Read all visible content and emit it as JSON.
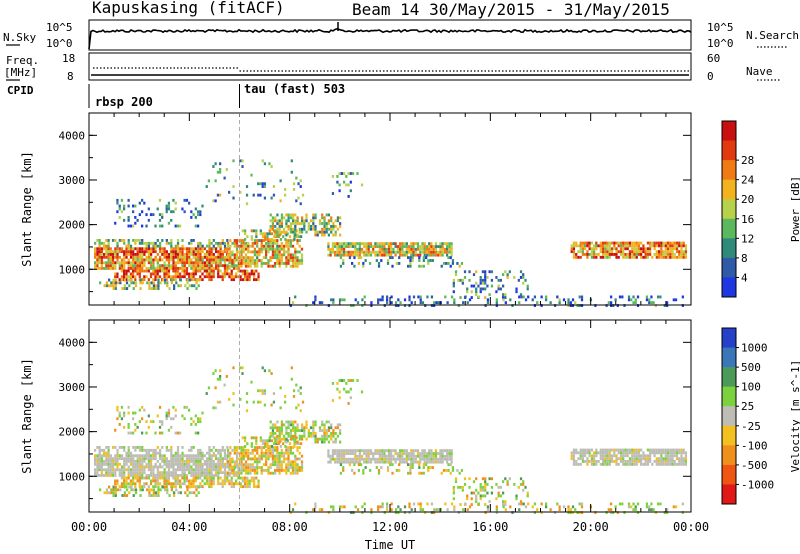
{
  "header": {
    "station": "Kapuskasing (fitACF)",
    "beam_info": "Beam 14 30/May/2015 - 31/May/2015"
  },
  "noise_panel": {
    "left_label": "N.Sky",
    "right_label": "N.Search",
    "left_ticks": [
      "10^5",
      "10^0"
    ],
    "right_ticks": [
      "10^5",
      "10^0"
    ]
  },
  "freq_panel": {
    "left_label_line1": "Freq.",
    "left_label_line2": "[MHz]",
    "right_label": "Nave",
    "left_ticks": [
      "18",
      "8"
    ],
    "right_ticks": [
      "60",
      "0"
    ]
  },
  "cpid_panel": {
    "label": "CPID",
    "modes": [
      {
        "name": "rbsp 200",
        "start_hour": 0
      },
      {
        "name": "tau (fast) 503",
        "start_hour": 6
      }
    ]
  },
  "chart_data": [
    {
      "type": "heatmap",
      "name": "power",
      "ylabel": "Slant Range [km]",
      "yticks": [
        "1000",
        "2000",
        "3000",
        "4000"
      ],
      "ylim": [
        200,
        4500
      ],
      "colorbar_label": "Power [dB]",
      "colorbar_ticks": [
        "4",
        "8",
        "12",
        "16",
        "20",
        "24",
        "28"
      ],
      "colorbar_range": [
        0,
        32
      ],
      "colors": [
        "#1f37e0",
        "#2e5aa8",
        "#2f8a7a",
        "#5cb85c",
        "#b8d14a",
        "#f2b31f",
        "#f07a13",
        "#e23a10",
        "#c81010"
      ]
    },
    {
      "type": "heatmap",
      "name": "velocity",
      "ylabel": "Slant Range [km]",
      "yticks": [
        "1000",
        "2000",
        "3000",
        "4000"
      ],
      "ylim": [
        200,
        4500
      ],
      "xlabel": "Time UT",
      "xticks": [
        "00:00",
        "04:00",
        "08:00",
        "12:00",
        "16:00",
        "20:00",
        "00:00"
      ],
      "xlim": [
        0,
        24
      ],
      "colorbar_label": "Velocity [m s^-1]",
      "colorbar_ticks": [
        "1000",
        "500",
        "100",
        "25",
        "-25",
        "-100",
        "-500",
        "-1000"
      ],
      "colors": [
        "#2541c8",
        "#3b76b8",
        "#4c9a5a",
        "#7bd23e",
        "#bdbdb5",
        "#f2c020",
        "#f0901c",
        "#ef5614",
        "#e01818"
      ]
    }
  ]
}
